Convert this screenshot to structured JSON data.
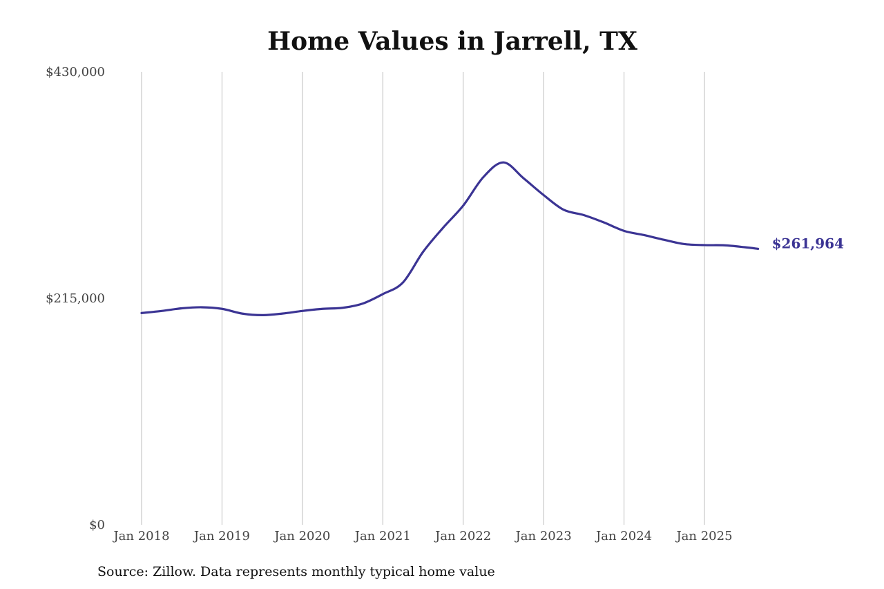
{
  "chart_data": {
    "type": "line",
    "title": "Home Values in Jarrell, TX",
    "xlabel": "",
    "ylabel": "",
    "source": "Source: Zillow. Data represents monthly typical home value",
    "ylim": [
      0,
      430000
    ],
    "y_ticks": [
      {
        "value": 0,
        "label": "$0"
      },
      {
        "value": 215000,
        "label": "$215,000"
      },
      {
        "value": 430000,
        "label": "$430,000"
      }
    ],
    "x_range": [
      "2018-01",
      "2025-09"
    ],
    "x_ticks": [
      {
        "date": "2018-01",
        "label": "Jan 2018"
      },
      {
        "date": "2019-01",
        "label": "Jan 2019"
      },
      {
        "date": "2020-01",
        "label": "Jan 2020"
      },
      {
        "date": "2021-01",
        "label": "Jan 2021"
      },
      {
        "date": "2022-01",
        "label": "Jan 2022"
      },
      {
        "date": "2023-01",
        "label": "Jan 2023"
      },
      {
        "date": "2024-01",
        "label": "Jan 2024"
      },
      {
        "date": "2025-01",
        "label": "Jan 2025"
      }
    ],
    "grid": {
      "vertical": true,
      "horizontal": false
    },
    "legend": "none",
    "series": [
      {
        "color": "#3b3494",
        "end_label": "$261,964",
        "points": [
          {
            "x": "2018-01",
            "y": 201000
          },
          {
            "x": "2018-04",
            "y": 203000
          },
          {
            "x": "2018-07",
            "y": 205500
          },
          {
            "x": "2018-10",
            "y": 206500
          },
          {
            "x": "2019-01",
            "y": 205000
          },
          {
            "x": "2019-04",
            "y": 200500
          },
          {
            "x": "2019-07",
            "y": 199000
          },
          {
            "x": "2019-10",
            "y": 200500
          },
          {
            "x": "2020-01",
            "y": 203000
          },
          {
            "x": "2020-04",
            "y": 205000
          },
          {
            "x": "2020-07",
            "y": 206000
          },
          {
            "x": "2020-10",
            "y": 210000
          },
          {
            "x": "2021-01",
            "y": 219000
          },
          {
            "x": "2021-04",
            "y": 230000
          },
          {
            "x": "2021-07",
            "y": 259000
          },
          {
            "x": "2021-10",
            "y": 282000
          },
          {
            "x": "2022-01",
            "y": 303000
          },
          {
            "x": "2022-04",
            "y": 330000
          },
          {
            "x": "2022-07",
            "y": 344000
          },
          {
            "x": "2022-10",
            "y": 329000
          },
          {
            "x": "2023-01",
            "y": 313000
          },
          {
            "x": "2023-04",
            "y": 299000
          },
          {
            "x": "2023-07",
            "y": 294000
          },
          {
            "x": "2023-10",
            "y": 287000
          },
          {
            "x": "2024-01",
            "y": 279000
          },
          {
            "x": "2024-04",
            "y": 275000
          },
          {
            "x": "2024-07",
            "y": 270500
          },
          {
            "x": "2024-10",
            "y": 266500
          },
          {
            "x": "2025-01",
            "y": 265500
          },
          {
            "x": "2025-04",
            "y": 265300
          },
          {
            "x": "2025-07",
            "y": 263500
          },
          {
            "x": "2025-09",
            "y": 261964
          }
        ]
      }
    ]
  }
}
